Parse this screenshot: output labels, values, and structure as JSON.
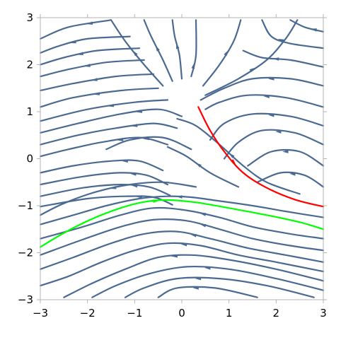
{
  "chart_data": {
    "type": "streamplot",
    "xlim": [
      -3,
      3
    ],
    "ylim": [
      -3,
      3
    ],
    "x_ticks": [
      "−3",
      "−2",
      "−1",
      "0",
      "1",
      "2",
      "3"
    ],
    "y_ticks": [
      "3",
      "2",
      "1",
      "0",
      "−1",
      "−2",
      "−3"
    ],
    "grid": false,
    "colors": {
      "stream": "#4a6a92",
      "red_curve": "#ff0000",
      "green_curve": "#00ff00",
      "frame": "#b3b3b3"
    },
    "highlighted_curves": [
      {
        "color": "red",
        "points": [
          [
            0.35,
            1.1
          ],
          [
            0.6,
            0.6
          ],
          [
            0.9,
            0.15
          ],
          [
            1.3,
            -0.3
          ],
          [
            1.8,
            -0.62
          ],
          [
            2.4,
            -0.87
          ],
          [
            3.0,
            -1.02
          ]
        ]
      },
      {
        "color": "green",
        "points": [
          [
            -3.0,
            -1.88
          ],
          [
            -2.5,
            -1.58
          ],
          [
            -1.9,
            -1.28
          ],
          [
            -1.3,
            -1.05
          ],
          [
            -0.8,
            -0.92
          ],
          [
            -0.3,
            -0.88
          ],
          [
            0.3,
            -0.93
          ],
          [
            1.0,
            -1.05
          ],
          [
            1.8,
            -1.2
          ],
          [
            2.5,
            -1.35
          ],
          [
            3.0,
            -1.5
          ]
        ]
      }
    ],
    "streamlines": [
      [
        [
          -0.2,
          -0.98
        ],
        [
          -0.6,
          -0.82
        ],
        [
          -1.2,
          -0.8
        ],
        [
          -2.0,
          -0.85
        ],
        [
          -3.0,
          -1.02
        ]
      ],
      [
        [
          -0.25,
          -0.78
        ],
        [
          -0.7,
          -0.6
        ],
        [
          -1.3,
          -0.55
        ],
        [
          -2.1,
          -0.62
        ],
        [
          -3.0,
          -0.8
        ]
      ],
      [
        [
          -0.3,
          -0.55
        ],
        [
          -0.75,
          -0.35
        ],
        [
          -1.3,
          -0.3
        ],
        [
          -2.1,
          -0.38
        ],
        [
          -3.0,
          -0.55
        ]
      ],
      [
        [
          -0.4,
          -0.25
        ],
        [
          -0.9,
          -0.05
        ],
        [
          -1.5,
          -0.05
        ],
        [
          -2.3,
          -0.15
        ],
        [
          -3.0,
          -0.3
        ]
      ],
      [
        [
          -0.3,
          0.3
        ],
        [
          -0.9,
          0.45
        ],
        [
          -1.7,
          0.35
        ],
        [
          -2.4,
          0.2
        ],
        [
          -3.0,
          0.05
        ]
      ],
      [
        [
          -0.1,
          0.65
        ],
        [
          -0.6,
          0.75
        ],
        [
          -1.4,
          0.65
        ],
        [
          -2.2,
          0.5
        ],
        [
          -3.0,
          0.3
        ]
      ],
      [
        [
          0.0,
          0.9
        ],
        [
          -0.5,
          1.05
        ],
        [
          -1.3,
          0.95
        ],
        [
          -2.2,
          0.75
        ],
        [
          -3.0,
          0.55
        ]
      ],
      [
        [
          -0.3,
          1.25
        ],
        [
          -1.0,
          1.2
        ],
        [
          -2.0,
          1.05
        ],
        [
          -3.0,
          0.8
        ]
      ],
      [
        [
          -0.5,
          1.5
        ],
        [
          -1.3,
          1.45
        ],
        [
          -2.3,
          1.3
        ],
        [
          -3.0,
          1.1
        ]
      ],
      [
        [
          -0.6,
          1.8
        ],
        [
          -1.4,
          1.75
        ],
        [
          -2.3,
          1.6
        ],
        [
          -3.0,
          1.45
        ]
      ],
      [
        [
          -0.8,
          2.1
        ],
        [
          -1.6,
          2.05
        ],
        [
          -2.4,
          1.9
        ],
        [
          -3.0,
          1.75
        ]
      ],
      [
        [
          -0.9,
          2.35
        ],
        [
          -1.8,
          2.3
        ],
        [
          -2.5,
          2.15
        ],
        [
          -3.0,
          2.0
        ]
      ],
      [
        [
          -1.1,
          2.6
        ],
        [
          -2.0,
          2.55
        ],
        [
          -2.6,
          2.4
        ],
        [
          -3.0,
          2.25
        ]
      ],
      [
        [
          -1.5,
          2.95
        ],
        [
          -2.4,
          2.8
        ],
        [
          -3.0,
          2.55
        ]
      ],
      [
        [
          -0.4,
          1.55
        ],
        [
          -0.8,
          2.0
        ],
        [
          -1.2,
          2.5
        ],
        [
          -1.5,
          2.95
        ]
      ],
      [
        [
          -0.2,
          1.65
        ],
        [
          -0.4,
          2.1
        ],
        [
          -0.65,
          2.6
        ],
        [
          -0.8,
          2.95
        ]
      ],
      [
        [
          0.0,
          1.7
        ],
        [
          -0.05,
          2.2
        ],
        [
          -0.15,
          2.6
        ],
        [
          -0.2,
          2.95
        ]
      ],
      [
        [
          0.2,
          1.75
        ],
        [
          0.3,
          2.2
        ],
        [
          0.3,
          2.95
        ]
      ],
      [
        [
          0.45,
          1.55
        ],
        [
          0.8,
          2.0
        ],
        [
          1.1,
          2.5
        ],
        [
          1.25,
          2.95
        ]
      ],
      [
        [
          0.5,
          1.35
        ],
        [
          1.2,
          1.7
        ],
        [
          1.8,
          2.1
        ],
        [
          2.2,
          2.55
        ],
        [
          2.45,
          2.95
        ]
      ],
      [
        [
          3.0,
          1.55
        ],
        [
          2.3,
          1.7
        ],
        [
          1.5,
          1.7
        ],
        [
          0.9,
          1.5
        ],
        [
          0.4,
          1.25
        ]
      ],
      [
        [
          3.0,
          1.95
        ],
        [
          2.3,
          2.1
        ],
        [
          1.7,
          2.15
        ],
        [
          1.3,
          2.3
        ]
      ],
      [
        [
          3.0,
          2.35
        ],
        [
          2.3,
          2.45
        ],
        [
          1.9,
          2.6
        ],
        [
          1.7,
          2.95
        ]
      ],
      [
        [
          3.0,
          2.7
        ],
        [
          2.6,
          2.8
        ],
        [
          2.3,
          2.95
        ]
      ],
      [
        [
          3.0,
          1.1
        ],
        [
          2.2,
          1.3
        ],
        [
          1.4,
          1.35
        ],
        [
          0.8,
          1.2
        ],
        [
          0.5,
          1.05
        ]
      ],
      [
        [
          3.0,
          0.7
        ],
        [
          2.3,
          0.9
        ],
        [
          1.5,
          0.95
        ],
        [
          0.9,
          0.75
        ],
        [
          0.6,
          0.4
        ]
      ],
      [
        [
          3.0,
          0.3
        ],
        [
          2.4,
          0.55
        ],
        [
          1.7,
          0.6
        ],
        [
          1.2,
          0.35
        ],
        [
          0.9,
          0.0
        ]
      ],
      [
        [
          3.0,
          -0.15
        ],
        [
          2.5,
          0.15
        ],
        [
          1.9,
          0.15
        ],
        [
          1.4,
          -0.15
        ]
      ],
      [
        [
          3.0,
          -0.6
        ],
        [
          2.6,
          -0.35
        ],
        [
          2.1,
          -0.3
        ],
        [
          1.6,
          -0.5
        ]
      ],
      [
        [
          0.2,
          0.2
        ],
        [
          -0.4,
          0.45
        ],
        [
          -1.1,
          0.4
        ],
        [
          -1.6,
          0.2
        ]
      ],
      [
        [
          1.2,
          -0.6
        ],
        [
          0.6,
          -0.3
        ],
        [
          0.1,
          0.05
        ],
        [
          -0.3,
          0.25
        ]
      ],
      [
        [
          2.5,
          -0.75
        ],
        [
          1.8,
          -0.5
        ],
        [
          1.3,
          -0.15
        ],
        [
          0.8,
          0.3
        ],
        [
          0.3,
          0.7
        ],
        [
          -0.1,
          0.85
        ]
      ],
      [
        [
          3.0,
          -1.25
        ],
        [
          2.2,
          -1.12
        ],
        [
          1.5,
          -1.0
        ],
        [
          0.8,
          -0.9
        ],
        [
          0.2,
          -0.82
        ],
        [
          -0.3,
          -0.8
        ],
        [
          -0.9,
          -0.85
        ],
        [
          -1.6,
          -1.0
        ],
        [
          -2.3,
          -1.2
        ],
        [
          -3.0,
          -1.4
        ]
      ],
      [
        [
          3.0,
          -1.7
        ],
        [
          2.3,
          -1.6
        ],
        [
          1.5,
          -1.45
        ],
        [
          0.8,
          -1.25
        ],
        [
          0.1,
          -1.1
        ],
        [
          -0.6,
          -1.05
        ],
        [
          -1.3,
          -1.2
        ],
        [
          -2.1,
          -1.45
        ],
        [
          -3.0,
          -1.7
        ]
      ],
      [
        [
          3.0,
          -1.95
        ],
        [
          2.3,
          -1.85
        ],
        [
          1.5,
          -1.7
        ],
        [
          0.8,
          -1.5
        ],
        [
          0.1,
          -1.32
        ],
        [
          -0.6,
          -1.3
        ],
        [
          -1.3,
          -1.45
        ],
        [
          -2.1,
          -1.72
        ],
        [
          -3.0,
          -2.05
        ]
      ],
      [
        [
          3.0,
          -2.2
        ],
        [
          2.2,
          -2.05
        ],
        [
          1.4,
          -1.9
        ],
        [
          0.6,
          -1.7
        ],
        [
          -0.1,
          -1.55
        ],
        [
          -0.8,
          -1.6
        ],
        [
          -1.5,
          -1.8
        ],
        [
          -2.3,
          -2.1
        ],
        [
          -3.0,
          -2.35
        ]
      ],
      [
        [
          3.0,
          -2.4
        ],
        [
          2.0,
          -2.2
        ],
        [
          1.2,
          -2.05
        ],
        [
          0.4,
          -1.85
        ],
        [
          -0.3,
          -1.8
        ],
        [
          -1.0,
          -1.95
        ],
        [
          -1.7,
          -2.2
        ],
        [
          -2.4,
          -2.5
        ],
        [
          -3.0,
          -2.7
        ]
      ],
      [
        [
          3.0,
          -2.6
        ],
        [
          2.0,
          -2.35
        ],
        [
          1.0,
          -2.15
        ],
        [
          0.2,
          -2.05
        ],
        [
          -0.5,
          -2.1
        ],
        [
          -1.2,
          -2.35
        ],
        [
          -1.9,
          -2.65
        ],
        [
          -2.5,
          -2.95
        ]
      ],
      [
        [
          3.0,
          -2.8
        ],
        [
          2.0,
          -2.55
        ],
        [
          1.0,
          -2.35
        ],
        [
          0.1,
          -2.3
        ],
        [
          -0.7,
          -2.45
        ],
        [
          -1.4,
          -2.7
        ],
        [
          -1.9,
          -2.95
        ]
      ],
      [
        [
          2.8,
          -2.95
        ],
        [
          1.8,
          -2.7
        ],
        [
          0.8,
          -2.55
        ],
        [
          -0.1,
          -2.55
        ],
        [
          -0.8,
          -2.75
        ],
        [
          -1.2,
          -2.95
        ]
      ],
      [
        [
          1.6,
          -2.95
        ],
        [
          0.7,
          -2.75
        ],
        [
          -0.1,
          -2.75
        ],
        [
          -0.5,
          -2.95
        ]
      ],
      [
        [
          0.3,
          -0.6
        ],
        [
          -0.4,
          -0.5
        ],
        [
          -1.1,
          -0.55
        ],
        [
          -1.8,
          -0.7
        ],
        [
          -2.5,
          -0.95
        ],
        [
          -3.0,
          -1.2
        ]
      ]
    ]
  }
}
